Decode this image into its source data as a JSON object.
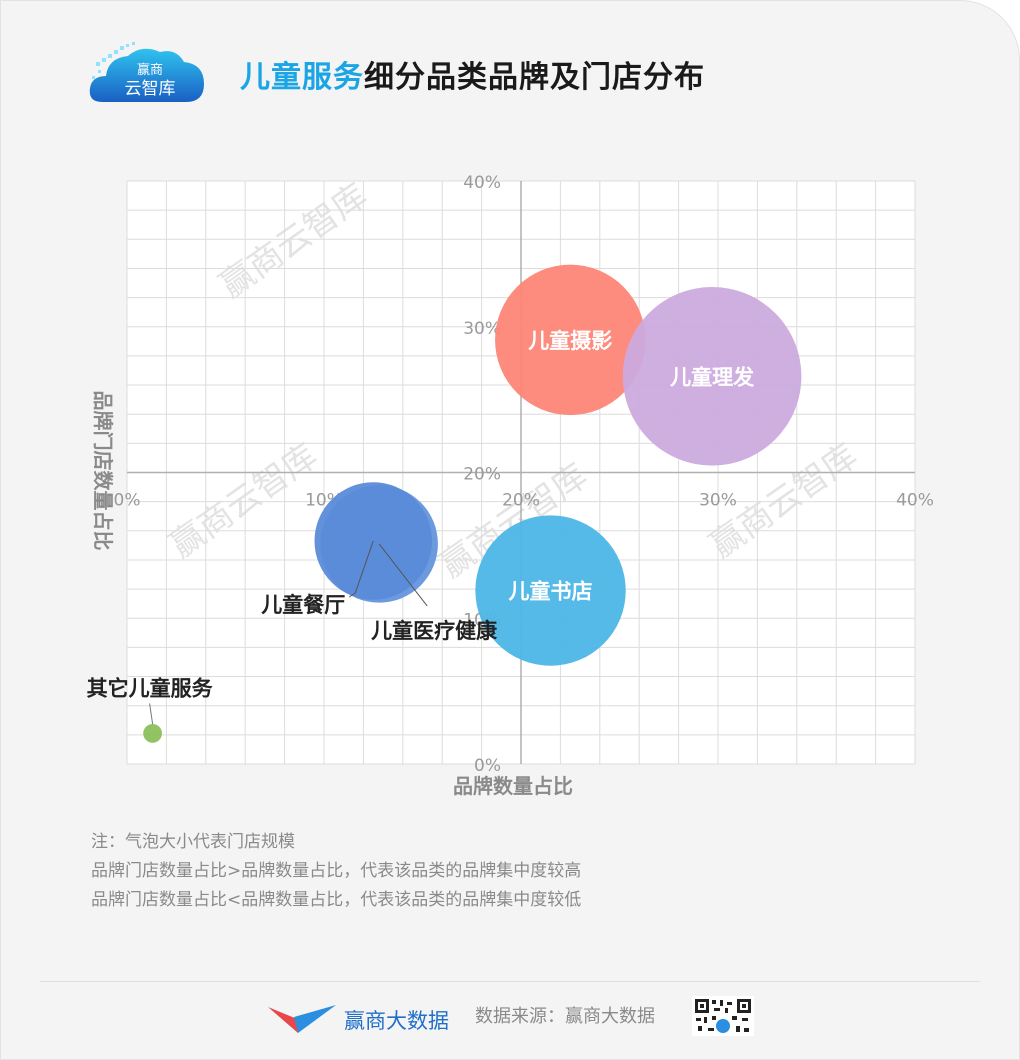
{
  "header": {
    "logo_text_top": "赢商",
    "logo_text_bottom": "云智库",
    "title_highlight": "儿童服务",
    "title_rest": "细分品类品牌及门店分布"
  },
  "watermark": "赢商云智库",
  "chart_data": {
    "type": "scatter",
    "xlabel": "品牌数量占比",
    "ylabel": "品牌门店数量占比",
    "x_ticks": [
      "0%",
      "10%",
      "20%",
      "30%",
      "40%"
    ],
    "y_ticks": [
      "0%",
      "10%",
      "20%",
      "30%",
      "40%"
    ],
    "xlim": [
      0,
      40
    ],
    "ylim": [
      0,
      40
    ],
    "grid": true,
    "axes_cross": [
      20,
      20
    ],
    "size_meaning": "门店规模",
    "points": [
      {
        "name": "儿童摄影",
        "x": 22.5,
        "y": 29.1,
        "size": 16,
        "color": "#fd8677",
        "label_pos": "inside"
      },
      {
        "name": "儿童理发",
        "x": 29.7,
        "y": 26.6,
        "size": 19,
        "color": "#ccaade",
        "label_pos": "inside"
      },
      {
        "name": "儿童书店",
        "x": 21.5,
        "y": 11.9,
        "size": 16,
        "color": "#4cb6e6",
        "label_pos": "inside"
      },
      {
        "name": "儿童医疗健康",
        "x": 12.8,
        "y": 15.1,
        "size": 12.5,
        "color": "#6495dc",
        "label_pos": "below-right"
      },
      {
        "name": "儿童餐厅",
        "x": 12.5,
        "y": 15.3,
        "size": 12.5,
        "color": "#5b8bd8",
        "label_pos": "below-left"
      },
      {
        "name": "其它儿童服务",
        "x": 1.3,
        "y": 2.1,
        "size": 2,
        "color": "#8bc05a",
        "label_pos": "above-left"
      }
    ]
  },
  "notes": [
    "注：气泡大小代表门店规模",
    "品牌门店数量占比>品牌数量占比，代表该品类的品牌集中度较高",
    "品牌门店数量占比<品牌数量占比，代表该品类的品牌集中度较低"
  ],
  "footer": {
    "brand": "赢商大数据",
    "source": "数据来源：赢商大数据"
  },
  "colors": {
    "title_highlight": "#1aa5e6",
    "brand_blue": "#1f6fc9",
    "grid": "#dcdcdc",
    "axis": "#b0b0b0"
  }
}
